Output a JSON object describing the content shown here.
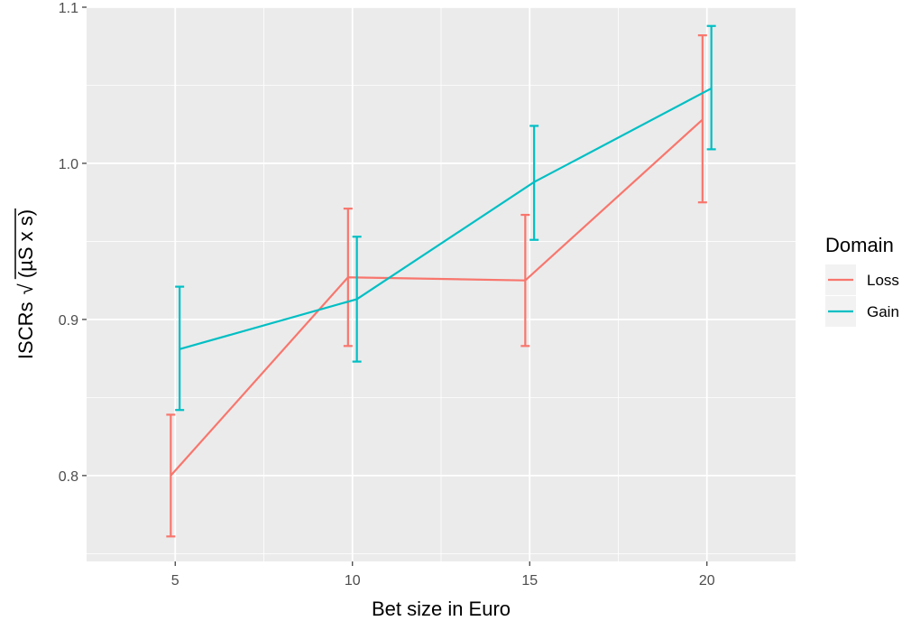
{
  "chart_data": {
    "type": "line",
    "title": "",
    "xlabel": "Bet size in Euro",
    "ylabel_prefix": "ISCRs",
    "ylabel_radicand": "(µS x s)",
    "x_ticks": [
      5,
      10,
      15,
      20
    ],
    "x_tick_labels": [
      "5",
      "10",
      "15",
      "20"
    ],
    "y_ticks": [
      0.8,
      0.9,
      1.0,
      1.1
    ],
    "y_tick_labels": [
      "0.8",
      "0.9",
      "1.0",
      "1.1"
    ],
    "xlim": [
      2.5,
      22.5
    ],
    "ylim": [
      0.745,
      1.1
    ],
    "grid": true,
    "legend": {
      "title": "Domain",
      "position": "right"
    },
    "series": [
      {
        "name": "Loss",
        "color": "#F8766D",
        "x": [
          5,
          10,
          15,
          20
        ],
        "values": [
          0.8,
          0.927,
          0.925,
          1.028
        ],
        "lower": [
          0.761,
          0.883,
          0.883,
          0.975
        ],
        "upper": [
          0.839,
          0.971,
          0.967,
          1.082
        ]
      },
      {
        "name": "Gain",
        "color": "#00BFC4",
        "x": [
          5,
          10,
          15,
          20
        ],
        "values": [
          0.881,
          0.913,
          0.988,
          1.048
        ],
        "lower": [
          0.842,
          0.873,
          0.951,
          1.009
        ],
        "upper": [
          0.921,
          0.953,
          1.024,
          1.088
        ]
      }
    ],
    "dodge": 0.25
  }
}
